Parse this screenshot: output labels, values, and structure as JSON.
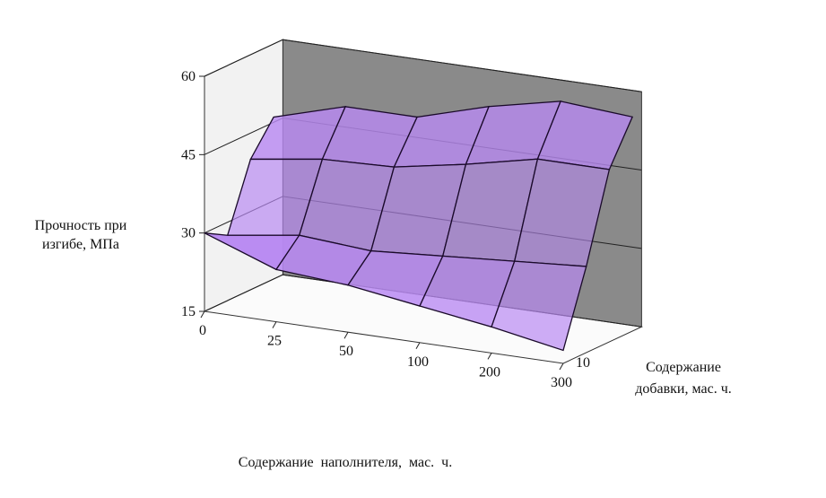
{
  "chart_data": {
    "type": "surface3d",
    "y_label": [
      "Прочность при",
      "изгибе, МПа"
    ],
    "x_label": "Содержание  наполнителя,  мас.  ч.",
    "z_label": [
      "Содержание",
      "добавки, мас. ч."
    ],
    "categories": [
      "0",
      "25",
      "50",
      "100",
      "200",
      "300"
    ],
    "depth_categories": [
      "10",
      null,
      null,
      null
    ],
    "values": [
      [
        30,
        25,
        24,
        22,
        20,
        17.5
      ],
      [
        27.5,
        29.5,
        28.5,
        29.5,
        30.5,
        31.5
      ],
      [
        40,
        42,
        42.5,
        45,
        48,
        48
      ],
      [
        46,
        50,
        50,
        54,
        57,
        56
      ]
    ],
    "color": "#b889f2",
    "back_wall_color": "#8a8a8a",
    "side_wall_color": "#f2f2f2",
    "ylim": [
      15,
      60
    ],
    "yticks": [
      15,
      30,
      45,
      60
    ],
    "grid": true
  }
}
